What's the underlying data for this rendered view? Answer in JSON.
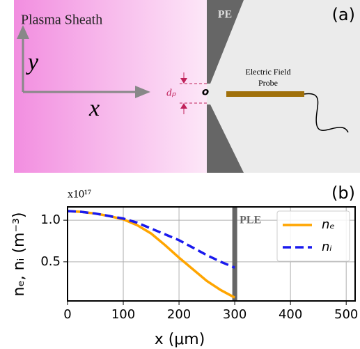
{
  "panel_a": {
    "tag": "(a)",
    "title": "Plasma Sheath",
    "electrode": "PE",
    "y_axis": "y",
    "x_axis": "x",
    "gap": "dₚ",
    "origin": "o",
    "probe": [
      "Electric Field",
      "Probe"
    ]
  },
  "chart_data": {
    "type": "line",
    "tag": "(b)",
    "multiplier": "x10¹⁷",
    "x_label": "x (μm)",
    "y_label": "nₑ, nᵢ (m⁻³)",
    "x": [
      0,
      25,
      50,
      75,
      100,
      125,
      150,
      175,
      200,
      225,
      250,
      275,
      300
    ],
    "series": [
      {
        "name": "nₑ",
        "color": "#ffa500",
        "dash": "solid",
        "values": [
          1.11,
          1.1,
          1.08,
          1.05,
          1.01,
          0.94,
          0.84,
          0.7,
          0.55,
          0.41,
          0.27,
          0.16,
          0.07
        ]
      },
      {
        "name": "nᵢ",
        "color": "#1a1aee",
        "dash": "dashed",
        "values": [
          1.11,
          1.1,
          1.08,
          1.05,
          1.02,
          0.97,
          0.9,
          0.83,
          0.76,
          0.67,
          0.58,
          0.5,
          0.43
        ]
      }
    ],
    "annotation": {
      "text": "PLE",
      "x": 300
    },
    "xlim": [
      0,
      516
    ],
    "ylim": [
      0.03,
      1.16
    ],
    "xticks": [
      0,
      100,
      200,
      300,
      400,
      500
    ],
    "yticks": [
      0.5,
      {
        "value": 1,
        "label": "1.0"
      }
    ],
    "grid": true,
    "legend": "upper right"
  }
}
